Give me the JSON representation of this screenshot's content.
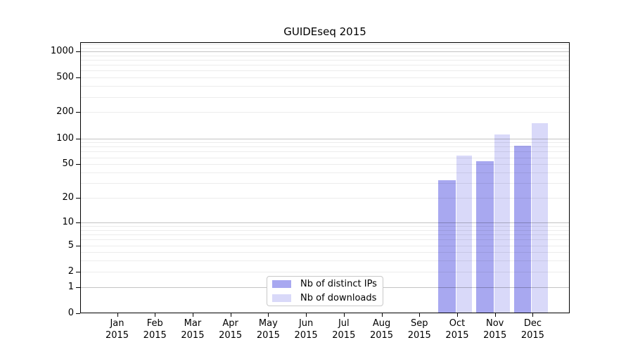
{
  "chart_data": {
    "type": "bar",
    "title": "GUIDEseq 2015",
    "categories": [
      {
        "month": "Jan",
        "year": "2015"
      },
      {
        "month": "Feb",
        "year": "2015"
      },
      {
        "month": "Mar",
        "year": "2015"
      },
      {
        "month": "Apr",
        "year": "2015"
      },
      {
        "month": "May",
        "year": "2015"
      },
      {
        "month": "Jun",
        "year": "2015"
      },
      {
        "month": "Jul",
        "year": "2015"
      },
      {
        "month": "Aug",
        "year": "2015"
      },
      {
        "month": "Sep",
        "year": "2015"
      },
      {
        "month": "Oct",
        "year": "2015"
      },
      {
        "month": "Nov",
        "year": "2015"
      },
      {
        "month": "Dec",
        "year": "2015"
      }
    ],
    "series": [
      {
        "name": "Nb of distinct IPs",
        "color": "#a8a8f0",
        "values": [
          0,
          0,
          0,
          0,
          0,
          0,
          0,
          0,
          0,
          32,
          53,
          81
        ]
      },
      {
        "name": "Nb of downloads",
        "color": "#d9d9f9",
        "values": [
          0,
          0,
          0,
          0,
          0,
          0,
          0,
          0,
          0,
          62,
          108,
          146
        ]
      }
    ],
    "xlabel": "",
    "ylabel": "",
    "y_axis": {
      "scale": "log10(1+x)",
      "tick_labels": [
        "0",
        "1",
        "2",
        "5",
        "10",
        "20",
        "50",
        "100",
        "200",
        "500",
        "1000"
      ],
      "tick_values": [
        0,
        1,
        2,
        5,
        10,
        20,
        50,
        100,
        200,
        500,
        1000
      ],
      "ylim": [
        0,
        1280
      ]
    },
    "grid": "horizontal major (powers of 10) + minor, drawn over bars",
    "legend": {
      "position": "bottom-center, inside plot",
      "entries": [
        "Nb of distinct IPs",
        "Nb of downloads"
      ]
    }
  }
}
